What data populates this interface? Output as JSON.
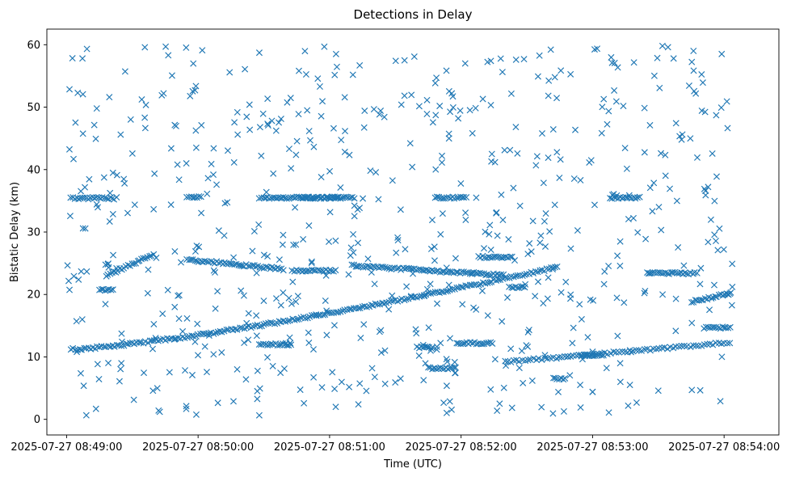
{
  "chart_data": {
    "type": "scatter",
    "title": "Detections in Delay",
    "xlabel": "Time (UTC)",
    "ylabel": "Bistatic Delay (km)",
    "marker": "x",
    "color": "#1f77b4",
    "x_units": "seconds since 2025-07-27 08:49:00",
    "xlim": [
      -9,
      325
    ],
    "ylim": [
      -2.5,
      62.5
    ],
    "x_ticks": [
      {
        "value": 0,
        "label": "2025-07-27 08:49:00"
      },
      {
        "value": 60,
        "label": "2025-07-27 08:50:00"
      },
      {
        "value": 120,
        "label": "2025-07-27 08:51:00"
      },
      {
        "value": 180,
        "label": "2025-07-27 08:52:00"
      },
      {
        "value": 240,
        "label": "2025-07-27 08:53:00"
      },
      {
        "value": 300,
        "label": "2025-07-27 08:54:00"
      }
    ],
    "y_ticks": [
      {
        "value": 0,
        "label": "0"
      },
      {
        "value": 10,
        "label": "10"
      },
      {
        "value": 20,
        "label": "20"
      },
      {
        "value": 30,
        "label": "30"
      },
      {
        "value": 40,
        "label": "40"
      },
      {
        "value": 50,
        "label": "50"
      },
      {
        "value": 60,
        "label": "60"
      }
    ],
    "tracks": [
      {
        "x_start": 2,
        "x_end": 224,
        "step": 1.0,
        "y_start": 11.2,
        "y_end": 24.4,
        "curve": 1.3
      },
      {
        "x_start": 200,
        "x_end": 303,
        "step": 1.3,
        "y_start": 9.2,
        "y_end": 12.3,
        "curve": 1.0
      },
      {
        "x_start": 2,
        "x_end": 23,
        "step": 0.9,
        "y_start": 35.4,
        "y_end": 35.4,
        "curve": 1.0
      },
      {
        "x_start": 130,
        "x_end": 200,
        "step": 0.9,
        "y_start": 24.6,
        "y_end": 23.1,
        "curve": 1.0
      },
      {
        "x_start": 55,
        "x_end": 100,
        "step": 0.9,
        "y_start": 25.6,
        "y_end": 24.0,
        "curve": 1.0
      },
      {
        "x_start": 18,
        "x_end": 40,
        "step": 0.9,
        "y_start": 23.0,
        "y_end": 26.5,
        "curve": 1.0
      },
      {
        "x_start": 285,
        "x_end": 303,
        "step": 0.9,
        "y_start": 18.8,
        "y_end": 20.2,
        "curve": 1.0
      }
    ],
    "segments": [
      {
        "y": 35.5,
        "x_start": 88,
        "x_end": 132
      },
      {
        "y": 35.5,
        "x_start": 168,
        "x_end": 183
      },
      {
        "y": 35.5,
        "x_start": 248,
        "x_end": 262
      },
      {
        "y": 35.6,
        "x_start": 55,
        "x_end": 62
      },
      {
        "y": 35.5,
        "x_start": 106,
        "x_end": 125
      },
      {
        "y": 23.8,
        "x_start": 103,
        "x_end": 123
      },
      {
        "y": 12.0,
        "x_start": 88,
        "x_end": 103
      },
      {
        "y": 12.2,
        "x_start": 178,
        "x_end": 195
      },
      {
        "y": 11.5,
        "x_start": 160,
        "x_end": 168
      },
      {
        "y": 8.2,
        "x_start": 165,
        "x_end": 178
      },
      {
        "y": 20.7,
        "x_start": 15,
        "x_end": 22
      },
      {
        "y": 23.4,
        "x_start": 265,
        "x_end": 288
      },
      {
        "y": 14.7,
        "x_start": 291,
        "x_end": 303
      },
      {
        "y": 26.0,
        "x_start": 188,
        "x_end": 204
      },
      {
        "y": 10.3,
        "x_start": 235,
        "x_end": 245
      },
      {
        "y": 21.2,
        "x_start": 202,
        "x_end": 210
      },
      {
        "y": 6.5,
        "x_start": 222,
        "x_end": 228
      }
    ],
    "noise": {
      "count": 640,
      "seed": 20250727,
      "x_range": [
        0,
        304
      ],
      "y_range": [
        0.6,
        59.9
      ]
    }
  }
}
